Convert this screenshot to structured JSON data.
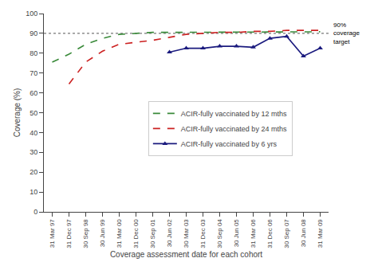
{
  "chart_data": {
    "type": "line",
    "xlabel": "Coverage assessment date for each cohort",
    "ylabel": "Coverage (%)",
    "categories": [
      "31 Mar 97",
      "31 Dec 97",
      "30 Sep 98",
      "30 Jun 99",
      "31 Mar 00",
      "31 Dec 00",
      "30 Sep 01",
      "30 Jun 02",
      "30 Mar 03",
      "31 Dec 03",
      "30 Sep 04",
      "30 Jun 05",
      "31 Mar 06",
      "31 Dec 06",
      "30 Sep 07",
      "30 Jun 08",
      "31 Mar 09"
    ],
    "series": [
      {
        "name": "ACIR-fully vaccinated by 12 mths",
        "color": "#3a8a3a",
        "line_style": "dashed",
        "values": [
          75.5,
          79.5,
          84.5,
          87.5,
          89.5,
          90.0,
          90.5,
          90.5,
          90.5,
          90.5,
          90.5,
          90.8,
          90.8,
          90.5,
          90.5,
          90.5,
          90.8
        ]
      },
      {
        "name": "ACIR-fully vaccinated by 24 mths",
        "color": "#cc2222",
        "line_style": "dashed",
        "values": [
          null,
          64.5,
          75.5,
          81.0,
          84.5,
          85.5,
          86.5,
          88.0,
          89.5,
          90.0,
          90.5,
          90.5,
          91.0,
          91.0,
          91.5,
          91.5,
          91.5
        ]
      },
      {
        "name": "ACIR-fully vaccinated by 6 yrs",
        "color": "#1a1a7e",
        "line_style": "solid",
        "marker": "triangle-up",
        "values": [
          null,
          null,
          null,
          null,
          null,
          null,
          null,
          80.5,
          82.5,
          82.5,
          83.5,
          83.5,
          83.0,
          87.5,
          88.5,
          78.5,
          82.5
        ]
      }
    ],
    "ylim": [
      0,
      100
    ],
    "yticks": [
      0,
      10,
      20,
      30,
      40,
      50,
      60,
      70,
      80,
      90,
      100
    ],
    "grid": false,
    "legend": "center",
    "target_line": {
      "y": 90,
      "label": "90%\ncoverage\ntarget"
    }
  }
}
